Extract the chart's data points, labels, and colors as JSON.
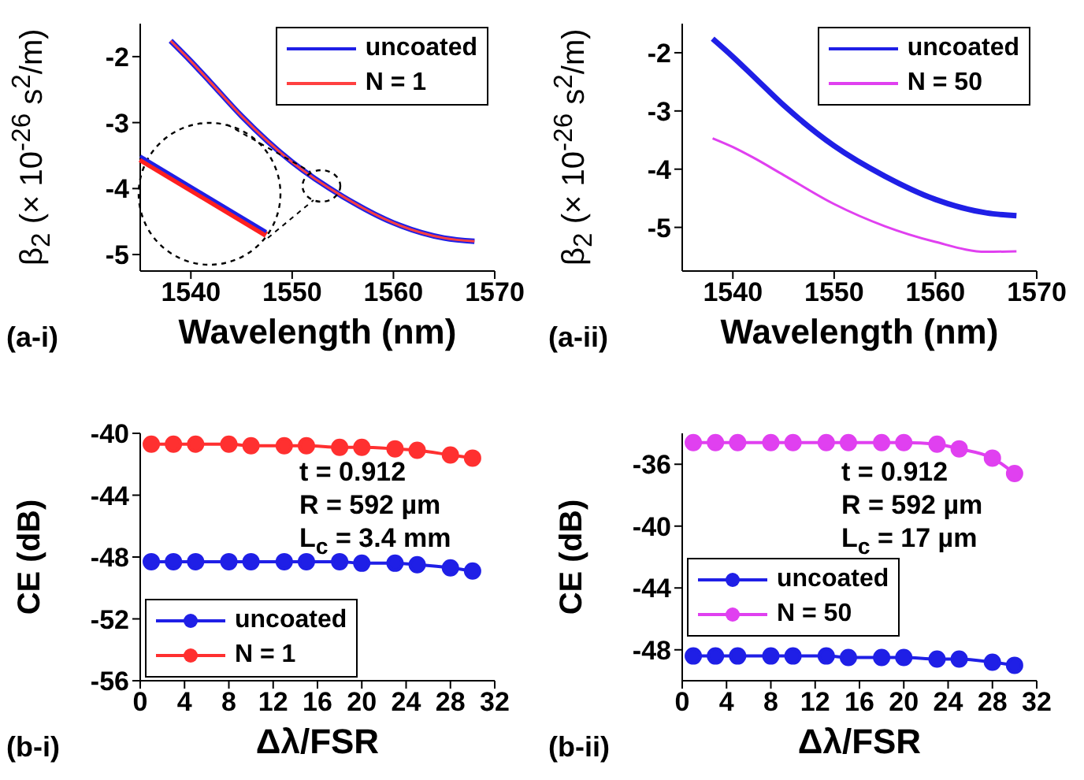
{
  "chart_data": [
    {
      "type": "line",
      "ylabel": "β$_{2}$ (× 10$^{-26}$ s$^{2}$/m)",
      "xlabel": "Wavelength (nm)",
      "annotations": [
        "(a-i)"
      ],
      "x": [
        1538,
        1540,
        1542,
        1545,
        1550,
        1555,
        1560,
        1565,
        1568
      ],
      "series": [
        {
          "name": "uncoated",
          "color": "#1f1fe6",
          "values": [
            -1.76,
            -2.07,
            -2.4,
            -2.9,
            -3.6,
            -4.12,
            -4.52,
            -4.75,
            -4.8
          ]
        },
        {
          "name": "N = 1",
          "color": "#ff4040",
          "values": [
            -1.76,
            -2.07,
            -2.4,
            -2.9,
            -3.6,
            -4.12,
            -4.52,
            -4.75,
            -4.8
          ]
        }
      ],
      "xlim": [
        1535,
        1570
      ],
      "xticks": [
        1540,
        1550,
        1560,
        1570
      ],
      "ylim": [
        -5.25,
        -1.5
      ],
      "yticks": [
        -5,
        -4,
        -3,
        -2
      ],
      "grid": false,
      "legend": "top right",
      "marker": "none",
      "line_style": "solid"
    },
    {
      "type": "line",
      "ylabel": "β$_{2}$ (× 10$^{-26}$ s$^{2}$/m)",
      "xlabel": "Wavelength (nm)",
      "annotations": [
        "(a-ii)"
      ],
      "x": [
        1538,
        1540,
        1542,
        1545,
        1550,
        1555,
        1560,
        1565,
        1568
      ],
      "series": [
        {
          "name": "uncoated",
          "color": "#1f1fe6",
          "values": [
            -1.76,
            -2.07,
            -2.4,
            -2.9,
            -3.6,
            -4.12,
            -4.52,
            -4.75,
            -4.8
          ]
        },
        {
          "name": "N = 50",
          "color": "#e040f0",
          "values": [
            -3.47,
            -3.62,
            -3.8,
            -4.1,
            -4.6,
            -4.98,
            -5.25,
            -5.42,
            -5.41
          ]
        }
      ],
      "xlim": [
        1535,
        1570
      ],
      "xticks": [
        1540,
        1550,
        1560,
        1570
      ],
      "ylim": [
        -5.75,
        -1.5
      ],
      "yticks": [
        -5,
        -4,
        -3,
        -2
      ],
      "grid": false,
      "legend": "top right",
      "marker": "none",
      "line_style": "solid"
    },
    {
      "type": "line",
      "ylabel": "CE (dB)",
      "xlabel": "Δλ/FSR",
      "annotations": [
        "(b-i)",
        "t = 0.912",
        "R = 592 µm",
        "L$_{c}$ = 3.4 mm"
      ],
      "x": [
        1,
        3,
        5,
        8,
        10,
        13,
        15,
        18,
        20,
        23,
        25,
        28,
        30
      ],
      "series": [
        {
          "name": "uncoated",
          "color": "#1f1fe6",
          "values": [
            -48.3,
            -48.3,
            -48.3,
            -48.3,
            -48.3,
            -48.3,
            -48.3,
            -48.3,
            -48.4,
            -48.4,
            -48.5,
            -48.7,
            -48.9
          ]
        },
        {
          "name": "N = 1",
          "color": "#ff3030",
          "values": [
            -40.7,
            -40.7,
            -40.7,
            -40.7,
            -40.8,
            -40.8,
            -40.8,
            -40.9,
            -40.9,
            -41.0,
            -41.1,
            -41.4,
            -41.6
          ]
        }
      ],
      "xlim": [
        0,
        32
      ],
      "xticks": [
        0,
        4,
        8,
        12,
        16,
        20,
        24,
        28,
        32
      ],
      "ylim": [
        -56,
        -40
      ],
      "yticks": [
        -56,
        -52,
        -48,
        -44,
        -40
      ],
      "grid": false,
      "legend": "bottom left",
      "marker": "circle",
      "line_style": "solid"
    },
    {
      "type": "line",
      "ylabel": "CE (dB)",
      "xlabel": "Δλ/FSR",
      "annotations": [
        "(b-ii)",
        "t = 0.912",
        "R = 592 µm",
        "L$_{c}$ = 17 µm"
      ],
      "x": [
        1,
        3,
        5,
        8,
        10,
        13,
        15,
        18,
        20,
        23,
        25,
        28,
        30
      ],
      "series": [
        {
          "name": "uncoated",
          "color": "#1f1fe6",
          "values": [
            -48.4,
            -48.4,
            -48.4,
            -48.4,
            -48.4,
            -48.4,
            -48.5,
            -48.5,
            -48.5,
            -48.6,
            -48.6,
            -48.8,
            -49.0
          ]
        },
        {
          "name": "N = 50",
          "color": "#e040f0",
          "values": [
            -34.6,
            -34.6,
            -34.6,
            -34.6,
            -34.6,
            -34.6,
            -34.6,
            -34.6,
            -34.6,
            -34.7,
            -35.0,
            -35.6,
            -36.6
          ]
        }
      ],
      "xlim": [
        0,
        32
      ],
      "xticks": [
        0,
        4,
        8,
        12,
        16,
        20,
        24,
        28,
        32
      ],
      "ylim": [
        -50,
        -34
      ],
      "yticks": [
        -48,
        -44,
        -40,
        -36
      ],
      "grid": false,
      "legend": "left",
      "marker": "circle",
      "line_style": "solid"
    }
  ]
}
